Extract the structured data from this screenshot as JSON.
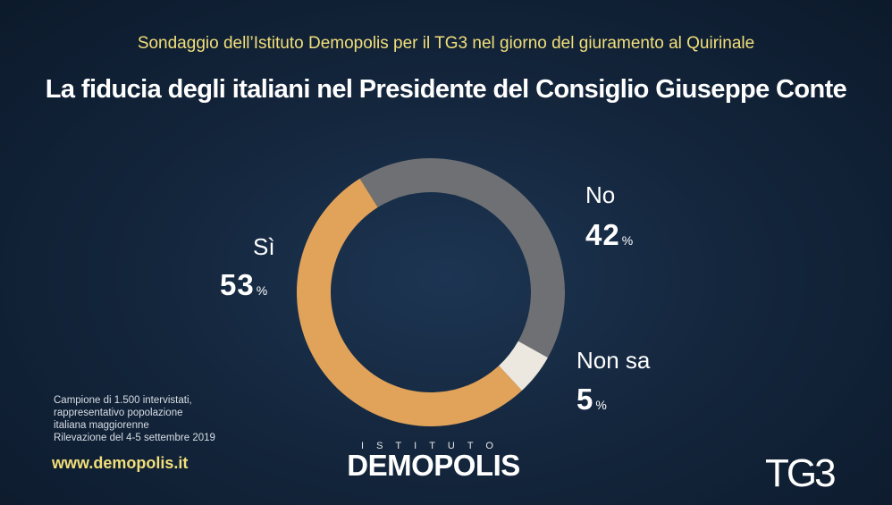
{
  "header": {
    "subtitle": "Sondaggio dell’Istituto Demopolis per il TG3 nel giorno del giuramento al Quirinale",
    "title": "La fiducia degli italiani nel Presidente del Consiglio Giuseppe Conte"
  },
  "chart_data": {
    "type": "pie",
    "donut": true,
    "categories": [
      "No",
      "Non sa",
      "Sì"
    ],
    "values": [
      42,
      5,
      53
    ],
    "value_labels": [
      "42",
      "5",
      "53"
    ],
    "unit": "%",
    "colors": [
      "#6e7074",
      "#ece8df",
      "#e1a35a"
    ]
  },
  "footer": {
    "note_lines": [
      "Campione di 1.500 intervistati,",
      "rappresentativo popolazione",
      "italiana maggiorenne",
      "Rilevazione del 4-5 settembre 2019"
    ],
    "website": "www.demopolis.it",
    "logo_top": "ISTITUTO",
    "logo_main": "DEMOPOLIS",
    "broadcaster": "TG3"
  }
}
